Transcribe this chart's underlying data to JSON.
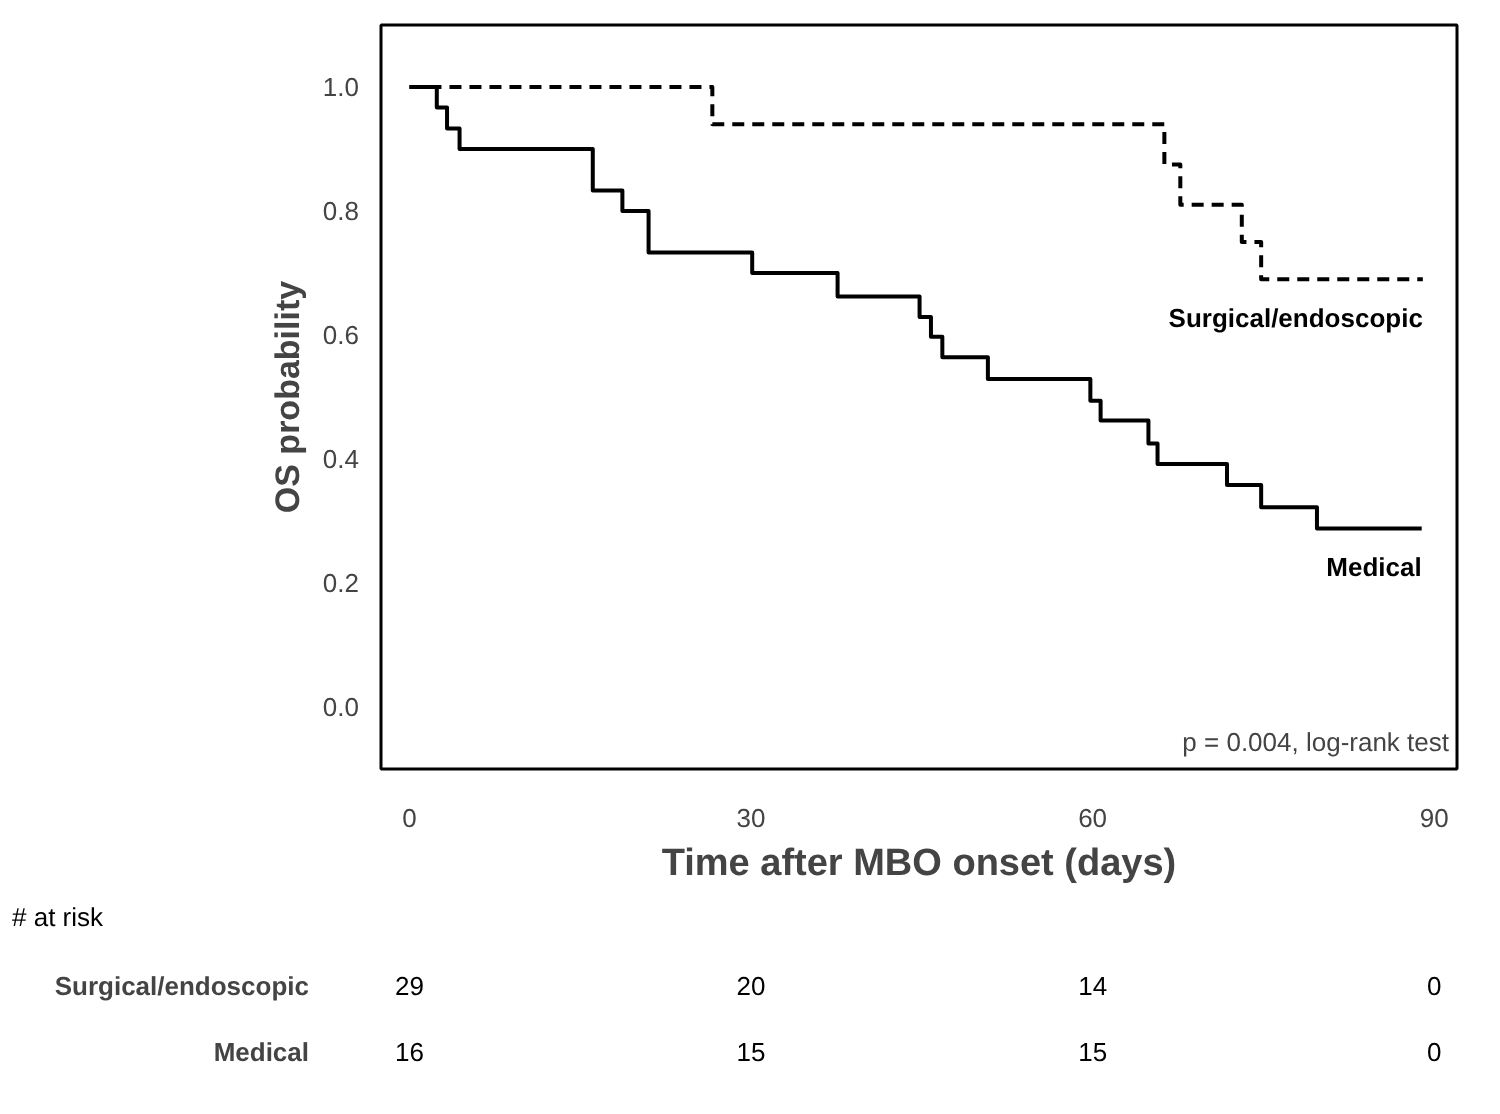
{
  "chart_data": [
    {
      "type": "step",
      "xlabel": "Time after MBO onset (days)",
      "ylabel": "OS probability",
      "xlim": [
        -2.5,
        92
      ],
      "ylim": [
        -0.1,
        1.1
      ],
      "xticks": [
        0,
        30,
        60,
        90
      ],
      "yticks": [
        {
          "value": 0,
          "label": "0.0"
        },
        {
          "value": 0.2,
          "label": "0.2"
        },
        {
          "value": 0.4,
          "label": "0.4"
        },
        {
          "value": 0.6,
          "label": "0.6"
        },
        {
          "value": 0.8,
          "label": "0.8"
        },
        {
          "value": 1,
          "label": "1.0"
        }
      ],
      "grid": false,
      "series": [
        {
          "name": "Surgical/endoscopic",
          "color": "#000000",
          "line_style": "dashed",
          "x": [
            0,
            26.6,
            66.3,
            67.7,
            73.1,
            74.8,
            89
          ],
          "values": [
            1.0,
            0.94,
            0.875,
            0.81,
            0.75,
            0.69,
            0.69
          ]
        },
        {
          "name": "Medical",
          "color": "#000000",
          "line_style": "solid",
          "x": [
            0,
            2.4,
            3.3,
            4.4,
            16.1,
            18.7,
            21.0,
            30.1,
            37.6,
            44.8,
            45.8,
            46.8,
            50.8,
            59.8,
            60.7,
            64.9,
            65.7,
            71.8,
            74.8,
            79.7,
            88.9
          ],
          "values": [
            1.0,
            0.967,
            0.933,
            0.9,
            0.833,
            0.8,
            0.733,
            0.7,
            0.662,
            0.629,
            0.597,
            0.564,
            0.529,
            0.494,
            0.462,
            0.425,
            0.392,
            0.358,
            0.322,
            0.288,
            0.288
          ]
        }
      ],
      "annotations": [
        "p = 0.004, log-rank test"
      ]
    },
    {
      "type": "heatmap",
      "title": "# at risk",
      "categories": [
        null,
        null,
        null,
        null
      ],
      "y_categories": [
        "Surgical/endoscopic",
        "Medical"
      ],
      "cells": [
        [
          29,
          20,
          14,
          0
        ],
        [
          16,
          15,
          15,
          0
        ]
      ],
      "data_labels": true
    }
  ]
}
